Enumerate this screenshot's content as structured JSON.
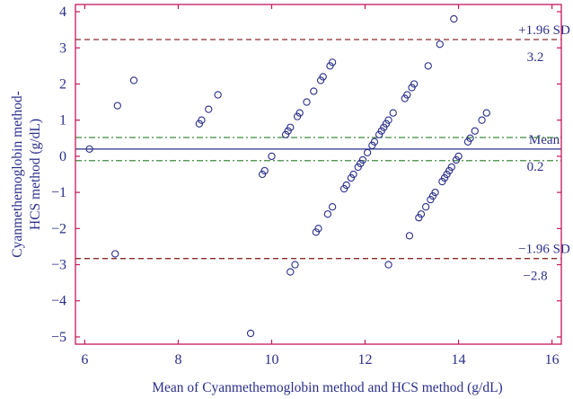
{
  "chart_data": {
    "type": "scatter",
    "title": "",
    "xlabel": "Mean of Cyanmethemoglobin method and HCS method (g/dL)",
    "ylabel_lines": [
      "Cyanmethemoglobin method-",
      "HCS method (g/dL)"
    ],
    "xlim": [
      5.8,
      16.2
    ],
    "ylim": [
      -5.2,
      4.2
    ],
    "xticks": [
      "6",
      "8",
      "10",
      "12",
      "14",
      "16"
    ],
    "yticks": [
      "−5",
      "−4",
      "−3",
      "−2",
      "−1",
      "0",
      "1",
      "2",
      "3",
      "4"
    ],
    "grid": false,
    "reference_lines": [
      {
        "id": "upper",
        "y": 3.23,
        "style": "dashed",
        "color": "#8b2a2a",
        "label_top": "+1.96 SD",
        "label_bottom": "3.2"
      },
      {
        "id": "mean",
        "y": 0.2,
        "style": "solid",
        "color": "#2a2f8a",
        "label_top": "Mean",
        "label_bottom": "0.2"
      },
      {
        "id": "mean_ci_upper",
        "y": 0.52,
        "style": "dashdot",
        "color": "#3e8a3e"
      },
      {
        "id": "mean_ci_lower",
        "y": -0.12,
        "style": "dashdot",
        "color": "#3e8a3e"
      },
      {
        "id": "lower",
        "y": -2.83,
        "style": "dashed",
        "color": "#8b2a2a",
        "label_top": "−1.96 SD",
        "label_bottom": "−2.8"
      }
    ],
    "series": [
      {
        "marker": "open-circle",
        "color": "#2a2f8a",
        "points": [
          [
            6.1,
            0.2
          ],
          [
            6.65,
            -2.7
          ],
          [
            6.7,
            1.4
          ],
          [
            7.05,
            2.1
          ],
          [
            8.45,
            0.9
          ],
          [
            8.5,
            1.0
          ],
          [
            8.65,
            1.3
          ],
          [
            8.85,
            1.7
          ],
          [
            9.55,
            -4.9
          ],
          [
            9.8,
            -0.5
          ],
          [
            9.85,
            -0.4
          ],
          [
            10.0,
            0.0
          ],
          [
            10.3,
            0.6
          ],
          [
            10.35,
            0.7
          ],
          [
            10.4,
            0.8
          ],
          [
            10.4,
            -3.2
          ],
          [
            10.5,
            -3.0
          ],
          [
            10.55,
            1.1
          ],
          [
            10.6,
            1.2
          ],
          [
            10.75,
            1.5
          ],
          [
            10.9,
            1.8
          ],
          [
            10.95,
            -2.1
          ],
          [
            11.0,
            -2.0
          ],
          [
            11.05,
            2.1
          ],
          [
            11.1,
            2.2
          ],
          [
            11.2,
            -1.6
          ],
          [
            11.25,
            2.5
          ],
          [
            11.3,
            2.6
          ],
          [
            11.3,
            -1.4
          ],
          [
            11.55,
            -0.9
          ],
          [
            11.6,
            -0.8
          ],
          [
            11.7,
            -0.6
          ],
          [
            11.75,
            -0.5
          ],
          [
            11.85,
            -0.3
          ],
          [
            11.9,
            -0.2
          ],
          [
            11.95,
            -0.1
          ],
          [
            12.05,
            0.1
          ],
          [
            12.15,
            0.3
          ],
          [
            12.2,
            0.4
          ],
          [
            12.3,
            0.6
          ],
          [
            12.35,
            0.7
          ],
          [
            12.4,
            0.8
          ],
          [
            12.45,
            0.9
          ],
          [
            12.5,
            1.0
          ],
          [
            12.5,
            -3.0
          ],
          [
            12.6,
            1.2
          ],
          [
            12.85,
            1.6
          ],
          [
            12.9,
            1.7
          ],
          [
            12.95,
            -2.2
          ],
          [
            13.0,
            1.9
          ],
          [
            13.05,
            2.0
          ],
          [
            13.15,
            -1.7
          ],
          [
            13.2,
            -1.6
          ],
          [
            13.3,
            -1.4
          ],
          [
            13.35,
            2.5
          ],
          [
            13.4,
            -1.2
          ],
          [
            13.45,
            -1.1
          ],
          [
            13.5,
            -1.0
          ],
          [
            13.6,
            3.1
          ],
          [
            13.65,
            -0.7
          ],
          [
            13.7,
            -0.6
          ],
          [
            13.75,
            -0.5
          ],
          [
            13.8,
            -0.4
          ],
          [
            13.85,
            -0.3
          ],
          [
            13.9,
            3.8
          ],
          [
            13.95,
            -0.1
          ],
          [
            14.0,
            0.0
          ],
          [
            14.2,
            0.4
          ],
          [
            14.25,
            0.5
          ],
          [
            14.35,
            0.7
          ],
          [
            14.5,
            1.0
          ],
          [
            14.6,
            1.2
          ]
        ]
      }
    ]
  }
}
